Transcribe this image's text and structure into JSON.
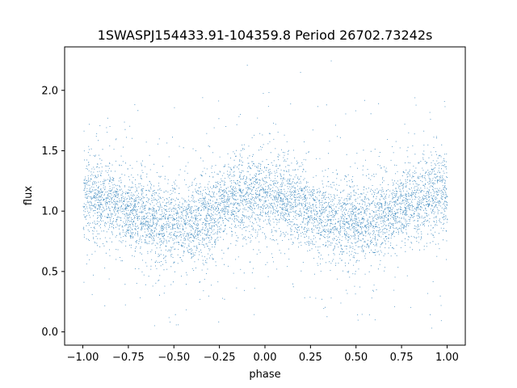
{
  "chart_data": {
    "type": "scatter",
    "title": "1SWASPJ154433.91-104359.8 Period 26702.73242s",
    "xlabel": "phase",
    "ylabel": "flux",
    "xlim": [
      -1.1,
      1.1
    ],
    "ylim": [
      -0.11,
      2.36
    ],
    "x_ticks": [
      -1.0,
      -0.75,
      -0.5,
      -0.25,
      0.0,
      0.25,
      0.5,
      0.75,
      1.0
    ],
    "x_tick_labels": [
      "−1.00",
      "−0.75",
      "−0.50",
      "−0.25",
      "0.00",
      "0.25",
      "0.50",
      "0.75",
      "1.00"
    ],
    "y_ticks": [
      0.0,
      0.5,
      1.0,
      1.5,
      2.0
    ],
    "y_tick_labels": [
      "0.0",
      "0.5",
      "1.0",
      "1.5",
      "2.0"
    ],
    "grid": false,
    "marker_color": "#1f77b4",
    "series": [
      {
        "x": [
          -1.0,
          -0.9,
          -0.8,
          -0.7,
          -0.6,
          -0.5,
          -0.4,
          -0.3,
          -0.2,
          -0.1,
          0.0,
          0.1,
          0.2,
          0.3,
          0.4,
          0.5,
          0.6,
          0.7,
          0.8,
          0.9,
          1.0
        ],
        "y": [
          1.13,
          1.1,
          1.03,
          0.97,
          0.93,
          0.91,
          0.92,
          0.98,
          1.07,
          1.13,
          1.13,
          1.1,
          1.03,
          0.97,
          0.93,
          0.91,
          0.92,
          0.98,
          1.07,
          1.13,
          1.13
        ]
      }
    ]
  }
}
